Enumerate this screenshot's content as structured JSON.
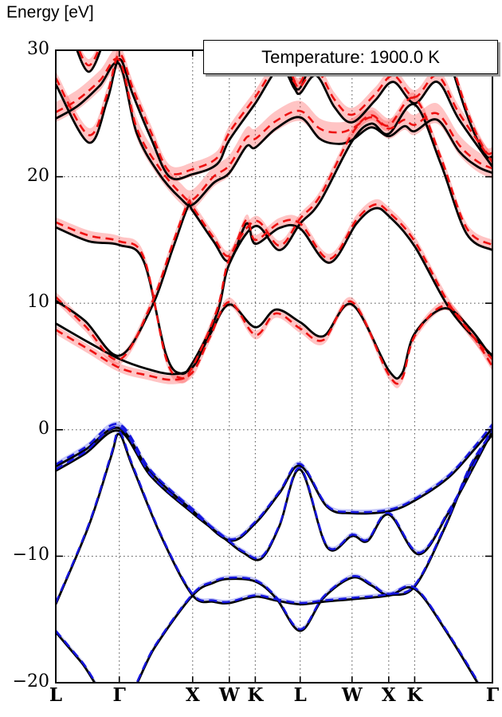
{
  "figure": {
    "y_axis_title": "Energy [eV]",
    "legend_label": "Temperature: 1900.0 K"
  },
  "colors": {
    "background": "#ffffff",
    "frame": "#000000",
    "reference_line": "#000000",
    "conduction_line": "#ee1111",
    "conduction_shade": "rgba(255,60,60,0.30)",
    "valence_line": "#1515dd",
    "valence_shade": "rgba(70,80,235,0.32)",
    "gridline": "#666666"
  },
  "chart_data": {
    "type": "line",
    "title": "",
    "ylabel": "Energy [eV]",
    "legend": "Temperature: 1900.0 K",
    "grid": true,
    "ylim": [
      -20,
      30
    ],
    "y_ticks": [
      {
        "value": 30,
        "label": "30"
      },
      {
        "value": 20,
        "label": "20"
      },
      {
        "value": 10,
        "label": "10"
      },
      {
        "value": 0,
        "label": "0"
      },
      {
        "value": -10,
        "label": "−10"
      },
      {
        "value": -20,
        "label": "−20"
      }
    ],
    "x_total": 5.953,
    "x_stations": [
      {
        "x": 0.0,
        "label": "L"
      },
      {
        "x": 0.866,
        "label": "Γ"
      },
      {
        "x": 1.866,
        "label": "X"
      },
      {
        "x": 2.366,
        "label": "W"
      },
      {
        "x": 2.72,
        "label": "K"
      },
      {
        "x": 3.332,
        "label": "L"
      },
      {
        "x": 4.039,
        "label": "W"
      },
      {
        "x": 4.539,
        "label": "X"
      },
      {
        "x": 4.893,
        "label": "K"
      },
      {
        "x": 5.953,
        "label": "Γ"
      }
    ],
    "series_note": "points = [k-path position, reference energy (black solid), renormalized offset (colored dashed = energy+offset)]; sigma = half-width of uncertainty shading in eV",
    "bands": [
      {
        "name": "valence-1",
        "group": "valence",
        "sigma": 0.18,
        "points": [
          [
            0,
            -16.0,
            0.1
          ],
          [
            0.35,
            -18.4,
            0.1
          ],
          [
            0.866,
            -22.0,
            0.15
          ],
          [
            1.35,
            -17.2,
            0.1
          ],
          [
            1.866,
            -13.1,
            0.1
          ],
          [
            2.15,
            -12.1,
            0.1
          ],
          [
            2.366,
            -11.8,
            0.1
          ],
          [
            2.72,
            -12.0,
            0.1
          ],
          [
            3.0,
            -13.3,
            0.1
          ],
          [
            3.332,
            -15.9,
            0.12
          ],
          [
            3.65,
            -13.3,
            0.1
          ],
          [
            4.039,
            -11.7,
            0.1
          ],
          [
            4.3,
            -12.3,
            0.1
          ],
          [
            4.539,
            -13.1,
            0.1
          ],
          [
            4.893,
            -12.6,
            0.1
          ],
          [
            5.35,
            -16.2,
            0.1
          ],
          [
            5.953,
            -22.0,
            0.15
          ]
        ]
      },
      {
        "name": "valence-2",
        "group": "valence",
        "sigma": 0.18,
        "points": [
          [
            0,
            -13.8,
            0.1
          ],
          [
            0.45,
            -7.6,
            0.12
          ],
          [
            0.75,
            -2.2,
            0.15
          ],
          [
            0.866,
            -0.35,
            0.2
          ],
          [
            1.05,
            -3.0,
            0.15
          ],
          [
            1.45,
            -8.6,
            0.1
          ],
          [
            1.866,
            -13.1,
            0.1
          ],
          [
            2.15,
            -13.6,
            0.1
          ],
          [
            2.366,
            -13.7,
            0.1
          ],
          [
            2.72,
            -13.2,
            0.1
          ],
          [
            3.0,
            -13.5,
            0.1
          ],
          [
            3.332,
            -13.8,
            0.1
          ],
          [
            3.65,
            -13.6,
            0.1
          ],
          [
            4.039,
            -13.4,
            0.1
          ],
          [
            4.539,
            -13.1,
            0.1
          ],
          [
            4.893,
            -12.4,
            0.1
          ],
          [
            5.3,
            -7.8,
            0.12
          ],
          [
            5.65,
            -3.0,
            0.15
          ],
          [
            5.953,
            -0.35,
            0.2
          ]
        ]
      },
      {
        "name": "valence-3",
        "group": "valence",
        "sigma": 0.2,
        "points": [
          [
            0,
            -3.25,
            0.12
          ],
          [
            0.4,
            -1.9,
            0.15
          ],
          [
            0.866,
            -0.1,
            0.3
          ],
          [
            1.3,
            -3.7,
            0.12
          ],
          [
            1.866,
            -6.6,
            0.1
          ],
          [
            2.15,
            -7.9,
            0.1
          ],
          [
            2.366,
            -8.9,
            0.1
          ],
          [
            2.55,
            -9.7,
            0.1
          ],
          [
            2.8,
            -10.2,
            0.12
          ],
          [
            3.05,
            -7.6,
            0.1
          ],
          [
            3.332,
            -3.15,
            0.12
          ],
          [
            3.7,
            -9.3,
            0.1
          ],
          [
            4.039,
            -8.4,
            0.1
          ],
          [
            4.25,
            -8.8,
            0.1
          ],
          [
            4.539,
            -6.7,
            0.12
          ],
          [
            4.95,
            -9.85,
            0.12
          ],
          [
            5.35,
            -6.6,
            0.12
          ],
          [
            5.7,
            -2.9,
            0.15
          ],
          [
            5.953,
            -0.1,
            0.3
          ]
        ]
      },
      {
        "name": "valence-4",
        "group": "valence",
        "sigma": 0.2,
        "points": [
          [
            0,
            -2.9,
            0.15
          ],
          [
            0.4,
            -1.6,
            0.2
          ],
          [
            0.866,
            0.12,
            0.3
          ],
          [
            1.3,
            -3.4,
            0.15
          ],
          [
            1.866,
            -6.4,
            0.12
          ],
          [
            2.366,
            -8.75,
            0.1
          ],
          [
            2.72,
            -7.4,
            0.12
          ],
          [
            3.05,
            -5.0,
            0.12
          ],
          [
            3.332,
            -2.85,
            0.15
          ],
          [
            3.7,
            -6.1,
            0.1
          ],
          [
            4.039,
            -6.6,
            0.1
          ],
          [
            4.539,
            -6.45,
            0.12
          ],
          [
            4.893,
            -5.6,
            0.12
          ],
          [
            5.35,
            -3.8,
            0.15
          ],
          [
            5.7,
            -1.6,
            0.2
          ],
          [
            5.953,
            0.12,
            0.3
          ]
        ]
      },
      {
        "name": "conduction-1",
        "group": "conduction",
        "sigma": 0.35,
        "points": [
          [
            0,
            8.4,
            -0.5
          ],
          [
            0.45,
            6.9,
            -0.55
          ],
          [
            0.866,
            5.6,
            -0.7
          ],
          [
            1.25,
            4.8,
            -0.5
          ],
          [
            1.6,
            4.4,
            -0.45
          ],
          [
            1.866,
            4.95,
            -0.4
          ],
          [
            2.1,
            7.5,
            -0.2
          ],
          [
            2.366,
            9.9,
            0.2
          ],
          [
            2.72,
            8.1,
            -0.6
          ],
          [
            3.0,
            9.5,
            -0.3
          ],
          [
            3.332,
            8.5,
            -0.5
          ],
          [
            3.65,
            7.4,
            -0.3
          ],
          [
            4.039,
            9.9,
            0.2
          ],
          [
            4.539,
            4.7,
            -0.35
          ],
          [
            4.72,
            4.45,
            -0.4
          ],
          [
            4.893,
            7.6,
            -0.2
          ],
          [
            5.3,
            9.6,
            0.2
          ],
          [
            5.65,
            8.0,
            -0.3
          ],
          [
            5.953,
            5.6,
            -0.6
          ]
        ]
      },
      {
        "name": "conduction-2",
        "group": "conduction",
        "sigma": 0.4,
        "points": [
          [
            0,
            10.2,
            0.3
          ],
          [
            0.4,
            8.6,
            -0.4
          ],
          [
            0.866,
            5.85,
            -0.3
          ],
          [
            1.3,
            9.6,
            0.3
          ],
          [
            1.6,
            14.4,
            0.4
          ],
          [
            1.8,
            17.6,
            0.3
          ],
          [
            1.866,
            17.3,
            0.3
          ],
          [
            2.15,
            14.9,
            0.3
          ],
          [
            2.366,
            13.35,
            0.4
          ],
          [
            2.6,
            16.3,
            0.3
          ],
          [
            2.72,
            14.7,
            0.3
          ],
          [
            3.05,
            15.95,
            0.4
          ],
          [
            3.332,
            15.9,
            0.4
          ],
          [
            3.73,
            13.2,
            0.3
          ],
          [
            4.1,
            16.3,
            0.3
          ],
          [
            4.35,
            17.5,
            0.3
          ],
          [
            4.539,
            16.9,
            0.3
          ],
          [
            4.893,
            14.5,
            0.4
          ],
          [
            5.4,
            9.3,
            0.3
          ],
          [
            5.953,
            5.85,
            -0.3
          ]
        ]
      },
      {
        "name": "conduction-3",
        "group": "conduction",
        "sigma": 0.4,
        "points": [
          [
            0,
            16.0,
            0.4
          ],
          [
            0.45,
            14.9,
            0.45
          ],
          [
            0.866,
            14.6,
            0.3
          ],
          [
            1.2,
            13.3,
            0.3
          ],
          [
            1.5,
            6.0,
            -0.3
          ],
          [
            1.7,
            4.45,
            -0.35
          ],
          [
            1.866,
            5.3,
            -0.3
          ],
          [
            2.2,
            9.2,
            0.3
          ],
          [
            2.366,
            13.1,
            0.4
          ],
          [
            2.72,
            16.1,
            0.4
          ],
          [
            3.05,
            14.2,
            0.35
          ],
          [
            3.332,
            16.3,
            0.4
          ],
          [
            3.6,
            18.0,
            0.45
          ],
          [
            4.039,
            22.8,
            0.6
          ],
          [
            4.3,
            24.2,
            0.65
          ],
          [
            4.539,
            23.4,
            0.65
          ],
          [
            4.893,
            25.7,
            0.5
          ],
          [
            5.25,
            21.0,
            0.5
          ],
          [
            5.6,
            15.5,
            0.45
          ],
          [
            5.953,
            14.2,
            0.4
          ]
        ]
      },
      {
        "name": "conduction-4",
        "group": "conduction",
        "sigma": 0.8,
        "points": [
          [
            0,
            24.6,
            0.5
          ],
          [
            0.3,
            25.6,
            0.5
          ],
          [
            0.6,
            27.2,
            0.4
          ],
          [
            0.866,
            28.9,
            0.3
          ],
          [
            1.1,
            23.5,
            0.4
          ],
          [
            1.4,
            20.3,
            0.5
          ],
          [
            1.7,
            18.3,
            0.4
          ],
          [
            1.866,
            17.8,
            0.4
          ],
          [
            2.15,
            19.5,
            0.5
          ],
          [
            2.366,
            20.3,
            0.6
          ],
          [
            2.6,
            22.4,
            0.7
          ],
          [
            2.72,
            22.3,
            0.7
          ],
          [
            3.0,
            23.8,
            0.6
          ],
          [
            3.332,
            24.7,
            0.5
          ],
          [
            3.6,
            23.0,
            0.8
          ],
          [
            3.85,
            22.6,
            0.9
          ],
          [
            4.039,
            22.9,
            0.9
          ],
          [
            4.3,
            23.9,
            0.8
          ],
          [
            4.539,
            23.2,
            0.6
          ],
          [
            4.75,
            24.0,
            0.5
          ],
          [
            4.893,
            23.6,
            0.5
          ],
          [
            5.2,
            24.5,
            0.5
          ],
          [
            5.5,
            22.0,
            0.5
          ],
          [
            5.75,
            20.8,
            0.4
          ],
          [
            5.953,
            20.3,
            0.35
          ]
        ]
      },
      {
        "name": "conduction-5",
        "group": "conduction",
        "sigma": 0.55,
        "points": [
          [
            0,
            27.3,
            0.5
          ],
          [
            0.45,
            22.7,
            0.6
          ],
          [
            0.7,
            26.0,
            0.5
          ],
          [
            0.866,
            29.3,
            0.4
          ],
          [
            1.05,
            26.5,
            0.5
          ],
          [
            1.3,
            23.0,
            0.5
          ],
          [
            1.55,
            20.0,
            0.4
          ],
          [
            1.866,
            20.2,
            0.4
          ],
          [
            2.2,
            21.0,
            0.5
          ],
          [
            2.366,
            22.9,
            0.6
          ],
          [
            2.72,
            25.8,
            0.5
          ],
          [
            3.05,
            28.6,
            0.4
          ],
          [
            3.25,
            27.0,
            0.5
          ],
          [
            3.332,
            26.6,
            0.5
          ],
          [
            3.55,
            28.0,
            0.5
          ],
          [
            3.8,
            25.5,
            0.6
          ],
          [
            4.039,
            24.3,
            0.6
          ],
          [
            4.35,
            26.0,
            0.5
          ],
          [
            4.6,
            27.5,
            0.5
          ],
          [
            4.893,
            25.8,
            0.5
          ],
          [
            5.2,
            27.5,
            0.5
          ],
          [
            5.5,
            24.5,
            0.5
          ],
          [
            5.953,
            20.8,
            0.35
          ]
        ]
      },
      {
        "name": "conduction-6",
        "group": "conduction",
        "sigma": 0.5,
        "points": [
          [
            0.2,
            31.5,
            0.4
          ],
          [
            0.45,
            28.3,
            0.5
          ],
          [
            0.7,
            31.5,
            0.4
          ]
        ]
      },
      {
        "name": "conduction-7",
        "group": "conduction",
        "sigma": 0.5,
        "points": [
          [
            3.05,
            31.8,
            0.3
          ],
          [
            3.3,
            26.9,
            0.4
          ],
          [
            3.6,
            31.8,
            0.3
          ]
        ]
      },
      {
        "name": "conduction-8",
        "group": "conduction",
        "sigma": 0.45,
        "points": [
          [
            5.25,
            31.5,
            0.3
          ],
          [
            5.6,
            25.0,
            0.35
          ],
          [
            5.85,
            21.8,
            0.3
          ],
          [
            5.953,
            21.6,
            0.3
          ]
        ]
      }
    ]
  }
}
